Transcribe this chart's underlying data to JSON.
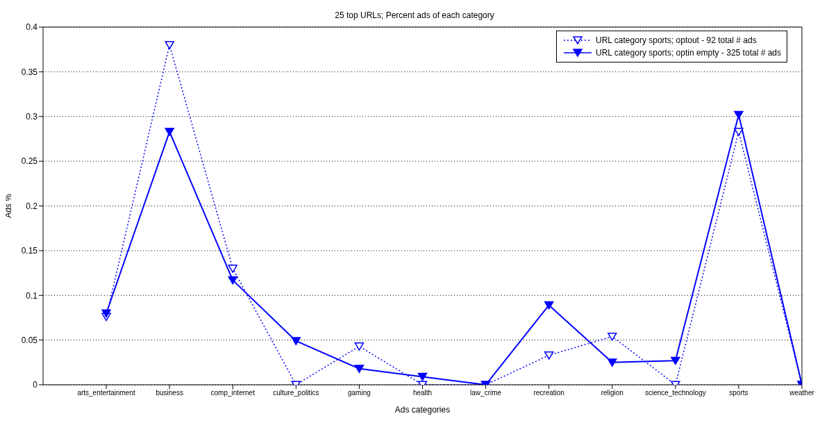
{
  "chart_data": {
    "type": "line",
    "title": "25 top URLs; Percent ads of each category",
    "xlabel": "Ads categories",
    "ylabel": "Ads %",
    "categories": [
      "arts_entertainment",
      "business",
      "comp_internet",
      "culture_politics",
      "gaming",
      "health",
      "law_crime",
      "recreation",
      "religion",
      "science_technology",
      "sports",
      "weather"
    ],
    "series": [
      {
        "name": "URL category sports; optout - 92 total # ads",
        "color": "#0000ff",
        "line_style": "dotted",
        "values": [
          0.076,
          0.38,
          0.13,
          0,
          0.043,
          0,
          0,
          0.033,
          0.054,
          0,
          0.283,
          0
        ]
      },
      {
        "name": "URL category sports; optin empty - 325 total # ads",
        "color": "#0000ff",
        "line_style": "solid",
        "values": [
          0.08,
          0.283,
          0.117,
          0.049,
          0.018,
          0.009,
          0,
          0.089,
          0.025,
          0.027,
          0.302,
          0
        ]
      }
    ],
    "ylim": [
      0,
      0.4
    ],
    "yticks": [
      0,
      0.05,
      0.1,
      0.15,
      0.2,
      0.25,
      0.3,
      0.35,
      0.4
    ],
    "grid": "y",
    "legend": "top right",
    "marker": "triangle"
  }
}
